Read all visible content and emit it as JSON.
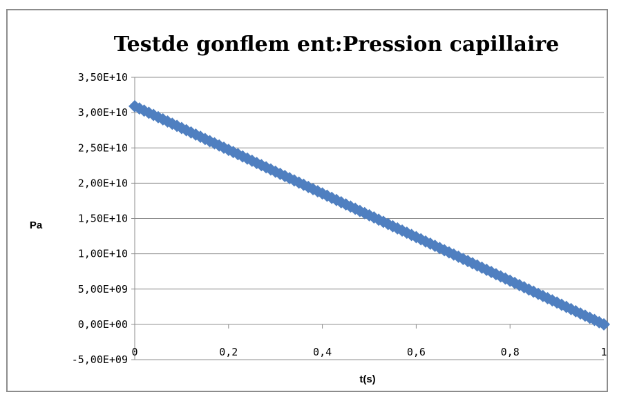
{
  "chart_data": {
    "type": "scatter",
    "title": "Testde gonflem ent:Pression capillaire",
    "xlabel": "t(s)",
    "ylabel": "Pa",
    "xlim": [
      0,
      1
    ],
    "ylim": [
      -5000000000,
      35000000000
    ],
    "x_ticks": [
      0,
      0.2,
      0.4,
      0.6,
      0.8,
      1
    ],
    "x_tick_labels": [
      "0",
      "0,2",
      "0,4",
      "0,6",
      "0,8",
      "1"
    ],
    "y_ticks": [
      -5000000000,
      0,
      5000000000,
      10000000000,
      15000000000,
      20000000000,
      25000000000,
      30000000000,
      35000000000
    ],
    "y_tick_labels": [
      "-5,00E+09",
      "0,00E+00",
      "5,00E+09",
      "1,00E+10",
      "1,50E+10",
      "2,00E+10",
      "2,50E+10",
      "3,00E+10",
      "3,50E+10"
    ],
    "grid": true,
    "legend": "none",
    "series": [
      {
        "color": "#4f7fc0",
        "marker": "diamond",
        "x_start": 0,
        "x_end": 1,
        "y_start": 30900000000,
        "y_end": 0,
        "num_points": 101
      }
    ]
  }
}
